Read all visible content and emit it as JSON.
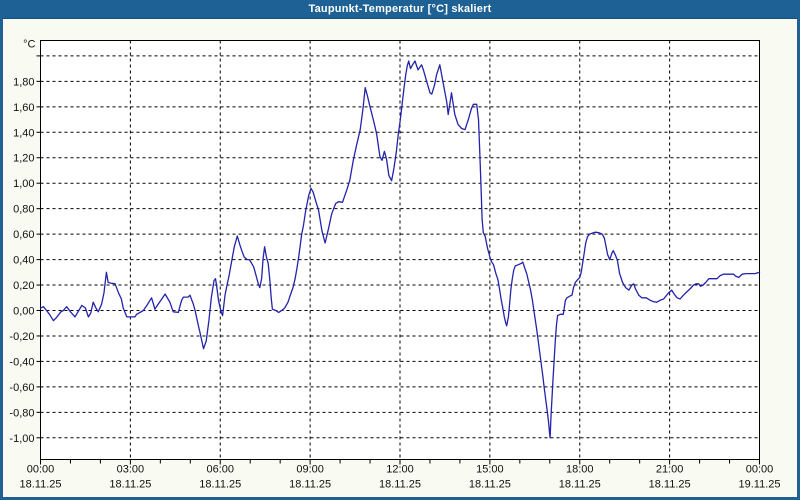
{
  "window": {
    "title": "Taupunkt-Temperatur [°C] skaliert"
  },
  "colors": {
    "titlebar": "#1e6194",
    "frame": "#1e6194",
    "plot_background": "#ffffff",
    "outer_background": "#f9faf2",
    "grid": "#000000",
    "label": "#111111",
    "line": "#2323ac"
  },
  "chart_data": {
    "type": "line",
    "title": "Taupunkt-Temperatur [°C] skaliert",
    "y_unit": "°C",
    "xlabel": "",
    "ylabel": "°C",
    "xlim_hours": [
      0,
      24
    ],
    "ylim": [
      -1.17,
      2.12
    ],
    "grid": "dashed",
    "legend": "none",
    "y_ticks": [
      {
        "value": 2.0,
        "label": ""
      },
      {
        "value": 1.8,
        "label": "1,80"
      },
      {
        "value": 1.6,
        "label": "1,60"
      },
      {
        "value": 1.4,
        "label": "1,40"
      },
      {
        "value": 1.2,
        "label": "1,20"
      },
      {
        "value": 1.0,
        "label": "1,00"
      },
      {
        "value": 0.8,
        "label": "0,80"
      },
      {
        "value": 0.6,
        "label": "0,60"
      },
      {
        "value": 0.4,
        "label": "0,40"
      },
      {
        "value": 0.2,
        "label": "0,20"
      },
      {
        "value": 0.0,
        "label": "0,00"
      },
      {
        "value": -0.2,
        "label": "-0,20"
      },
      {
        "value": -0.4,
        "label": "-0,40"
      },
      {
        "value": -0.6,
        "label": "-0,60"
      },
      {
        "value": -0.8,
        "label": "-0,80"
      },
      {
        "value": -1.0,
        "label": "-1,00"
      }
    ],
    "x_ticks": [
      {
        "hour": 0,
        "time": "00:00",
        "date": "18.11.25"
      },
      {
        "hour": 3,
        "time": "03:00",
        "date": "18.11.25"
      },
      {
        "hour": 6,
        "time": "06:00",
        "date": "18.11.25"
      },
      {
        "hour": 9,
        "time": "09:00",
        "date": "18.11.25"
      },
      {
        "hour": 12,
        "time": "12:00",
        "date": "18.11.25"
      },
      {
        "hour": 15,
        "time": "15:00",
        "date": "18.11.25"
      },
      {
        "hour": 18,
        "time": "18:00",
        "date": "18.11.25"
      },
      {
        "hour": 21,
        "time": "21:00",
        "date": "18.11.25"
      },
      {
        "hour": 24,
        "time": "00:00",
        "date": "19.11.25"
      }
    ],
    "minor_x_tick_every_hours": 1,
    "series": [
      {
        "name": "Taupunkt-Temperatur skaliert",
        "color": "#2323ac",
        "points": [
          [
            0,
            0.02
          ],
          [
            0.1,
            0.03
          ],
          [
            0.2,
            0.0
          ],
          [
            0.3,
            -0.03
          ],
          [
            0.43,
            -0.08
          ],
          [
            0.55,
            -0.05
          ],
          [
            0.68,
            -0.01
          ],
          [
            0.76,
            0.0
          ],
          [
            0.87,
            0.03
          ],
          [
            1.0,
            -0.01
          ],
          [
            1.15,
            -0.05
          ],
          [
            1.28,
            0.0
          ],
          [
            1.38,
            0.04
          ],
          [
            1.5,
            0.02
          ],
          [
            1.6,
            -0.05
          ],
          [
            1.68,
            -0.02
          ],
          [
            1.76,
            0.065
          ],
          [
            1.85,
            0.02
          ],
          [
            1.93,
            -0.01
          ],
          [
            2.04,
            0.05
          ],
          [
            2.12,
            0.14
          ],
          [
            2.2,
            0.3
          ],
          [
            2.26,
            0.22
          ],
          [
            2.35,
            0.215
          ],
          [
            2.49,
            0.21
          ],
          [
            2.6,
            0.14
          ],
          [
            2.7,
            0.09
          ],
          [
            2.76,
            0.02
          ],
          [
            2.88,
            -0.05
          ],
          [
            3.0,
            -0.05
          ],
          [
            3.15,
            -0.05
          ],
          [
            3.21,
            -0.03
          ],
          [
            3.43,
            0.0
          ],
          [
            3.55,
            0.04
          ],
          [
            3.71,
            0.1
          ],
          [
            3.82,
            0.01
          ],
          [
            3.93,
            0.05
          ],
          [
            4.05,
            0.09
          ],
          [
            4.16,
            0.13
          ],
          [
            4.32,
            0.065
          ],
          [
            4.43,
            -0.01
          ],
          [
            4.6,
            -0.015
          ],
          [
            4.71,
            0.08
          ],
          [
            4.77,
            0.105
          ],
          [
            4.93,
            0.105
          ],
          [
            4.99,
            0.12
          ],
          [
            5.1,
            0.05
          ],
          [
            5.16,
            0.0
          ],
          [
            5.27,
            -0.12
          ],
          [
            5.33,
            -0.18
          ],
          [
            5.44,
            -0.3
          ],
          [
            5.53,
            -0.24
          ],
          [
            5.62,
            -0.08
          ],
          [
            5.7,
            0.1
          ],
          [
            5.79,
            0.235
          ],
          [
            5.84,
            0.25
          ],
          [
            5.88,
            0.19
          ],
          [
            5.94,
            0.08
          ],
          [
            6.03,
            -0.01
          ],
          [
            6.08,
            -0.04
          ],
          [
            6.16,
            0.12
          ],
          [
            6.22,
            0.19
          ],
          [
            6.3,
            0.28
          ],
          [
            6.4,
            0.41
          ],
          [
            6.47,
            0.5
          ],
          [
            6.57,
            0.585
          ],
          [
            6.65,
            0.52
          ],
          [
            6.72,
            0.47
          ],
          [
            6.8,
            0.42
          ],
          [
            6.9,
            0.4
          ],
          [
            6.97,
            0.4
          ],
          [
            7.05,
            0.37
          ],
          [
            7.12,
            0.34
          ],
          [
            7.2,
            0.27
          ],
          [
            7.27,
            0.21
          ],
          [
            7.32,
            0.18
          ],
          [
            7.38,
            0.25
          ],
          [
            7.43,
            0.41
          ],
          [
            7.48,
            0.5
          ],
          [
            7.54,
            0.42
          ],
          [
            7.6,
            0.37
          ],
          [
            7.65,
            0.25
          ],
          [
            7.7,
            0.1
          ],
          [
            7.74,
            0.01
          ],
          [
            7.85,
            0.0
          ],
          [
            7.95,
            -0.015
          ],
          [
            8.05,
            0.0
          ],
          [
            8.15,
            0.02
          ],
          [
            8.26,
            0.065
          ],
          [
            8.35,
            0.13
          ],
          [
            8.43,
            0.18
          ],
          [
            8.5,
            0.25
          ],
          [
            8.56,
            0.33
          ],
          [
            8.62,
            0.42
          ],
          [
            8.67,
            0.51
          ],
          [
            8.72,
            0.6
          ],
          [
            8.78,
            0.67
          ],
          [
            8.85,
            0.78
          ],
          [
            8.95,
            0.9
          ],
          [
            9.03,
            0.96
          ],
          [
            9.1,
            0.93
          ],
          [
            9.2,
            0.85
          ],
          [
            9.28,
            0.79
          ],
          [
            9.4,
            0.62
          ],
          [
            9.5,
            0.53
          ],
          [
            9.62,
            0.65
          ],
          [
            9.72,
            0.76
          ],
          [
            9.85,
            0.84
          ],
          [
            9.95,
            0.855
          ],
          [
            10.08,
            0.85
          ],
          [
            10.22,
            0.945
          ],
          [
            10.32,
            1.02
          ],
          [
            10.44,
            1.18
          ],
          [
            10.55,
            1.3
          ],
          [
            10.67,
            1.42
          ],
          [
            10.76,
            1.58
          ],
          [
            10.84,
            1.75
          ],
          [
            10.92,
            1.68
          ],
          [
            11.0,
            1.6
          ],
          [
            11.11,
            1.5
          ],
          [
            11.22,
            1.39
          ],
          [
            11.33,
            1.21
          ],
          [
            11.4,
            1.18
          ],
          [
            11.48,
            1.25
          ],
          [
            11.55,
            1.19
          ],
          [
            11.63,
            1.06
          ],
          [
            11.72,
            1.02
          ],
          [
            11.8,
            1.12
          ],
          [
            11.88,
            1.25
          ],
          [
            11.94,
            1.38
          ],
          [
            12.0,
            1.48
          ],
          [
            12.07,
            1.62
          ],
          [
            12.13,
            1.74
          ],
          [
            12.19,
            1.85
          ],
          [
            12.24,
            1.92
          ],
          [
            12.29,
            1.96
          ],
          [
            12.35,
            1.9
          ],
          [
            12.42,
            1.93
          ],
          [
            12.5,
            1.96
          ],
          [
            12.6,
            1.89
          ],
          [
            12.72,
            1.93
          ],
          [
            12.78,
            1.89
          ],
          [
            12.9,
            1.79
          ],
          [
            13.0,
            1.71
          ],
          [
            13.06,
            1.7
          ],
          [
            13.15,
            1.77
          ],
          [
            13.22,
            1.85
          ],
          [
            13.33,
            1.93
          ],
          [
            13.44,
            1.79
          ],
          [
            13.56,
            1.64
          ],
          [
            13.61,
            1.54
          ],
          [
            13.67,
            1.63
          ],
          [
            13.72,
            1.71
          ],
          [
            13.83,
            1.54
          ],
          [
            13.94,
            1.46
          ],
          [
            14.06,
            1.43
          ],
          [
            14.17,
            1.42
          ],
          [
            14.28,
            1.5
          ],
          [
            14.39,
            1.59
          ],
          [
            14.45,
            1.62
          ],
          [
            14.56,
            1.62
          ],
          [
            14.62,
            1.5
          ],
          [
            14.66,
            1.26
          ],
          [
            14.7,
            1.0
          ],
          [
            14.74,
            0.72
          ],
          [
            14.78,
            0.61
          ],
          [
            14.84,
            0.585
          ],
          [
            14.92,
            0.49
          ],
          [
            15.0,
            0.42
          ],
          [
            15.05,
            0.385
          ],
          [
            15.12,
            0.36
          ],
          [
            15.2,
            0.29
          ],
          [
            15.27,
            0.24
          ],
          [
            15.32,
            0.17
          ],
          [
            15.38,
            0.08
          ],
          [
            15.43,
            0.02
          ],
          [
            15.48,
            -0.05
          ],
          [
            15.53,
            -0.1
          ],
          [
            15.56,
            -0.12
          ],
          [
            15.62,
            -0.05
          ],
          [
            15.66,
            0.05
          ],
          [
            15.7,
            0.16
          ],
          [
            15.75,
            0.25
          ],
          [
            15.8,
            0.32
          ],
          [
            15.85,
            0.35
          ],
          [
            15.95,
            0.36
          ],
          [
            16.05,
            0.37
          ],
          [
            16.1,
            0.38
          ],
          [
            16.17,
            0.33
          ],
          [
            16.23,
            0.29
          ],
          [
            16.3,
            0.22
          ],
          [
            16.36,
            0.16
          ],
          [
            16.42,
            0.08
          ],
          [
            16.47,
            0.0
          ],
          [
            16.52,
            -0.08
          ],
          [
            16.57,
            -0.16
          ],
          [
            16.62,
            -0.25
          ],
          [
            16.67,
            -0.34
          ],
          [
            16.72,
            -0.43
          ],
          [
            16.77,
            -0.52
          ],
          [
            16.82,
            -0.62
          ],
          [
            16.87,
            -0.71
          ],
          [
            16.92,
            -0.8
          ],
          [
            16.96,
            -0.88
          ],
          [
            16.99,
            -0.96
          ],
          [
            17.01,
            -1.0
          ],
          [
            17.04,
            -0.83
          ],
          [
            17.07,
            -0.7
          ],
          [
            17.1,
            -0.57
          ],
          [
            17.14,
            -0.41
          ],
          [
            17.18,
            -0.25
          ],
          [
            17.22,
            -0.12
          ],
          [
            17.26,
            -0.04
          ],
          [
            17.35,
            -0.03
          ],
          [
            17.45,
            -0.03
          ],
          [
            17.52,
            0.08
          ],
          [
            17.57,
            0.1
          ],
          [
            17.68,
            0.115
          ],
          [
            17.74,
            0.12
          ],
          [
            17.79,
            0.18
          ],
          [
            17.85,
            0.22
          ],
          [
            17.92,
            0.24
          ],
          [
            18.0,
            0.26
          ],
          [
            18.05,
            0.3
          ],
          [
            18.1,
            0.375
          ],
          [
            18.15,
            0.45
          ],
          [
            18.2,
            0.53
          ],
          [
            18.26,
            0.58
          ],
          [
            18.33,
            0.6
          ],
          [
            18.45,
            0.61
          ],
          [
            18.52,
            0.615
          ],
          [
            18.65,
            0.61
          ],
          [
            18.75,
            0.6
          ],
          [
            18.82,
            0.57
          ],
          [
            18.88,
            0.5
          ],
          [
            18.93,
            0.44
          ],
          [
            19.0,
            0.4
          ],
          [
            19.08,
            0.455
          ],
          [
            19.12,
            0.47
          ],
          [
            19.2,
            0.43
          ],
          [
            19.26,
            0.39
          ],
          [
            19.33,
            0.29
          ],
          [
            19.43,
            0.22
          ],
          [
            19.53,
            0.18
          ],
          [
            19.64,
            0.16
          ],
          [
            19.74,
            0.2
          ],
          [
            19.8,
            0.21
          ],
          [
            19.86,
            0.17
          ],
          [
            19.97,
            0.12
          ],
          [
            20.07,
            0.1
          ],
          [
            20.22,
            0.1
          ],
          [
            20.35,
            0.08
          ],
          [
            20.46,
            0.07
          ],
          [
            20.57,
            0.065
          ],
          [
            20.68,
            0.08
          ],
          [
            20.8,
            0.09
          ],
          [
            20.97,
            0.14
          ],
          [
            21.07,
            0.16
          ],
          [
            21.15,
            0.13
          ],
          [
            21.25,
            0.1
          ],
          [
            21.35,
            0.09
          ],
          [
            21.46,
            0.12
          ],
          [
            21.57,
            0.145
          ],
          [
            21.68,
            0.17
          ],
          [
            21.8,
            0.2
          ],
          [
            21.88,
            0.21
          ],
          [
            21.97,
            0.21
          ],
          [
            22.03,
            0.19
          ],
          [
            22.12,
            0.2
          ],
          [
            22.2,
            0.22
          ],
          [
            22.31,
            0.25
          ],
          [
            22.45,
            0.25
          ],
          [
            22.58,
            0.25
          ],
          [
            22.69,
            0.275
          ],
          [
            22.8,
            0.285
          ],
          [
            23.0,
            0.285
          ],
          [
            23.14,
            0.285
          ],
          [
            23.2,
            0.27
          ],
          [
            23.31,
            0.26
          ],
          [
            23.42,
            0.285
          ],
          [
            23.55,
            0.29
          ],
          [
            23.7,
            0.29
          ],
          [
            23.85,
            0.29
          ],
          [
            24.0,
            0.3
          ]
        ]
      }
    ]
  }
}
